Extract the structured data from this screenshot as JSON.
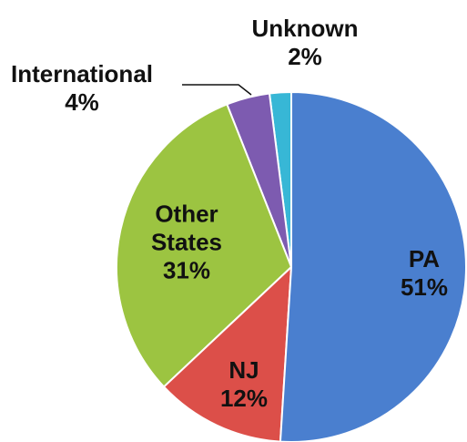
{
  "chart_data": {
    "type": "pie",
    "categories": [
      "PA",
      "NJ",
      "Other States",
      "International",
      "Unknown"
    ],
    "values": [
      51,
      12,
      31,
      4,
      2
    ],
    "value_labels": [
      "51%",
      "12%",
      "31%",
      "4%",
      "2%"
    ],
    "colors": [
      "#4a7fcf",
      "#dc4f49",
      "#9cc441",
      "#7d5bb0",
      "#37b7d6"
    ]
  }
}
